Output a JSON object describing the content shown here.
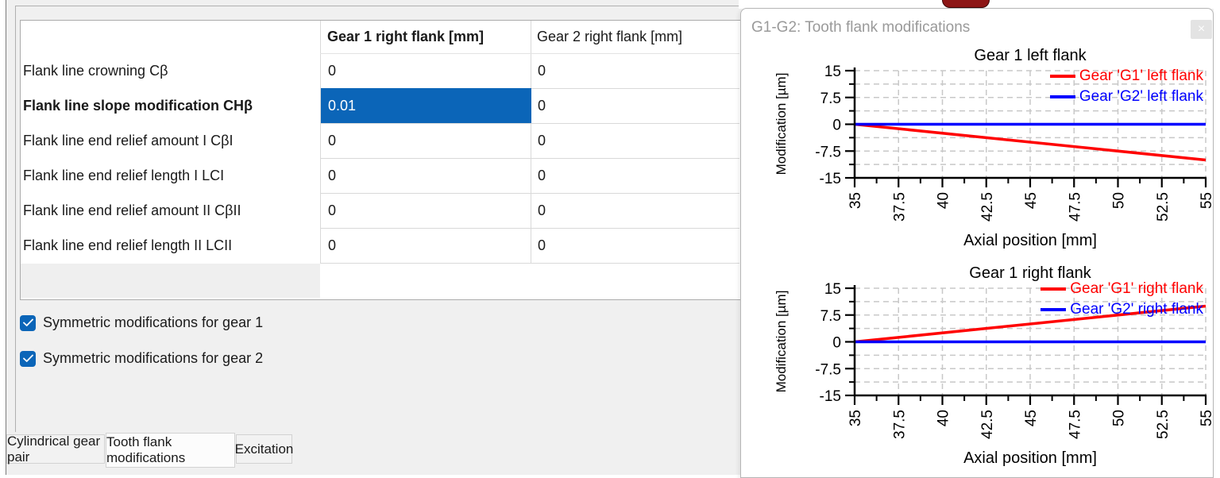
{
  "colors": {
    "accent": "#0b65b8",
    "series_red": "#ff0000",
    "series_blue": "#0000ff",
    "grid": "#c8c8c8",
    "axis": "#000000"
  },
  "table": {
    "columns": [
      "",
      "Gear 1 right flank [mm]",
      "Gear 2 right flank [mm]"
    ],
    "rows": [
      {
        "label": "Flank line crowning Cβ",
        "g1": "0",
        "g2": "0",
        "bold": false,
        "selected": false
      },
      {
        "label": "Flank line slope modification CHβ",
        "g1": "0.01",
        "g2": "0",
        "bold": true,
        "selected": true
      },
      {
        "label": "Flank line end relief amount I CβI",
        "g1": "0",
        "g2": "0",
        "bold": false,
        "selected": false
      },
      {
        "label": "Flank line end relief length I LCI",
        "g1": "0",
        "g2": "0",
        "bold": false,
        "selected": false
      },
      {
        "label": "Flank line end relief amount II CβII",
        "g1": "0",
        "g2": "0",
        "bold": false,
        "selected": false
      },
      {
        "label": "Flank line end relief length II LCII",
        "g1": "0",
        "g2": "0",
        "bold": false,
        "selected": false
      }
    ]
  },
  "checkboxes": [
    {
      "label": "Symmetric modifications for gear 1",
      "checked": true
    },
    {
      "label": "Symmetric modifications for gear 2",
      "checked": true
    }
  ],
  "tabs": [
    {
      "label": "Cylindrical gear pair",
      "active": false
    },
    {
      "label": "Tooth flank modifications",
      "active": true
    },
    {
      "label": "Excitation",
      "active": false
    }
  ],
  "panel": {
    "title": "G1-G2: Tooth flank modifications",
    "close_label": "×"
  },
  "chart_data": [
    {
      "type": "line",
      "title": "Gear 1 left flank",
      "xlabel": "Axial position [mm]",
      "ylabel": "Modification [µm]",
      "xlim": [
        35,
        55
      ],
      "ylim": [
        -15,
        15
      ],
      "xticks": [
        35,
        37.5,
        40,
        42.5,
        45,
        47.5,
        50,
        52.5,
        55
      ],
      "yticks": [
        15,
        7.5,
        0,
        -7.5,
        -15
      ],
      "grid": "dashed",
      "legend_position": "top-right",
      "series": [
        {
          "name": "Gear 'G1' left flank",
          "color": "#ff0000",
          "x": [
            35,
            55
          ],
          "y": [
            0,
            -10
          ]
        },
        {
          "name": "Gear 'G2' left flank",
          "color": "#0000ff",
          "x": [
            35,
            55
          ],
          "y": [
            0,
            0
          ]
        }
      ]
    },
    {
      "type": "line",
      "title": "Gear 1 right flank",
      "xlabel": "Axial position [mm]",
      "ylabel": "Modification [µm]",
      "xlim": [
        35,
        55
      ],
      "ylim": [
        -15,
        15
      ],
      "xticks": [
        35,
        37.5,
        40,
        42.5,
        45,
        47.5,
        50,
        52.5,
        55
      ],
      "yticks": [
        15,
        7.5,
        0,
        -7.5,
        -15
      ],
      "grid": "dashed",
      "legend_position": "top-right",
      "series": [
        {
          "name": "Gear 'G1' right flank",
          "color": "#ff0000",
          "x": [
            35,
            55
          ],
          "y": [
            0,
            10
          ]
        },
        {
          "name": "Gear 'G2' right flank",
          "color": "#0000ff",
          "x": [
            35,
            55
          ],
          "y": [
            0,
            0
          ]
        }
      ]
    }
  ]
}
